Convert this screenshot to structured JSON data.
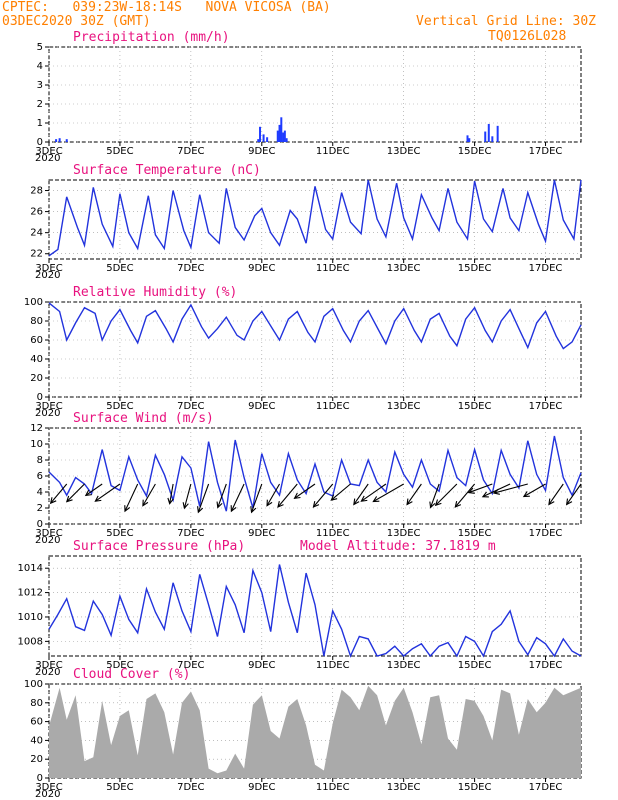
{
  "header": {
    "line1_left": "CPTEC:   039:23W-18:14S   NOVA VICOSA (BA)",
    "line2_left": "03DEC2020 30Z (GMT)",
    "line2_right": "Vertical Grid Line: 30Z",
    "line3_right": "TQ0126L028",
    "model_altitude": "Model Altitude: 37.1819 m",
    "color": "#ff7f00",
    "title_color": "#e8127f",
    "line_color": "#2233dd",
    "bar_color": "#1f3bff",
    "cloud_color": "#aaaaaa"
  },
  "x_ticks": [
    "3DEC",
    "5DEC",
    "7DEC",
    "9DEC",
    "11DEC",
    "13DEC",
    "15DEC",
    "17DEC"
  ],
  "x_tick_under": "2020",
  "chart_data": [
    {
      "type": "bar",
      "title": "Precipitation (mm/h)",
      "ylim": [
        0,
        5
      ],
      "yticks": [
        "0",
        "1",
        "2",
        "3",
        "4",
        "5"
      ],
      "x_unit": "days since 03DEC2020 30Z",
      "x": [
        0.2,
        0.3,
        0.5,
        5.95,
        6.05,
        6.15,
        5.9,
        6.45,
        6.5,
        6.55,
        6.6,
        6.65,
        6.7,
        11.8,
        11.85,
        12.3,
        12.4,
        12.5,
        12.65
      ],
      "values": [
        0.15,
        0.2,
        0.15,
        0.8,
        0.4,
        0.25,
        0.15,
        0.6,
        0.9,
        1.3,
        0.5,
        0.6,
        0.2,
        0.35,
        0.2,
        0.55,
        0.95,
        0.3,
        0.85
      ]
    },
    {
      "type": "line",
      "title": "Surface Temperature (nC)",
      "ylim": [
        21.5,
        29
      ],
      "yticks": [
        "22",
        "24",
        "26",
        "28"
      ],
      "x_unit": "days since 03DEC2020 30Z",
      "x": [
        0,
        0.25,
        0.5,
        0.8,
        1.0,
        1.25,
        1.5,
        1.8,
        2.0,
        2.25,
        2.5,
        2.8,
        3.0,
        3.25,
        3.5,
        3.8,
        4.0,
        4.25,
        4.5,
        4.8,
        5.0,
        5.25,
        5.5,
        5.8,
        6.0,
        6.25,
        6.5,
        6.8,
        7.0,
        7.25,
        7.5,
        7.8,
        8.0,
        8.25,
        8.5,
        8.8,
        9.0,
        9.25,
        9.5,
        9.8,
        10.0,
        10.25,
        10.5,
        10.8,
        11.0,
        11.25,
        11.5,
        11.8,
        12.0,
        12.25,
        12.5,
        12.8,
        13.0,
        13.25,
        13.5,
        13.8,
        14.0,
        14.25,
        14.5,
        14.8,
        15.0
      ],
      "values": [
        21.8,
        22.4,
        27.4,
        24.5,
        22.8,
        28.3,
        24.8,
        22.7,
        27.7,
        24.0,
        22.5,
        27.5,
        23.8,
        22.5,
        28.0,
        24.2,
        22.6,
        27.6,
        24.0,
        23.0,
        28.2,
        24.5,
        23.3,
        25.6,
        26.3,
        24.0,
        22.8,
        26.1,
        25.3,
        23.0,
        28.4,
        24.3,
        23.4,
        27.8,
        25.0,
        23.9,
        29.0,
        25.3,
        23.6,
        28.7,
        25.4,
        23.4,
        27.6,
        25.4,
        24.2,
        28.2,
        25.0,
        23.4,
        28.9,
        25.3,
        24.1,
        28.2,
        25.4,
        24.2,
        27.8,
        24.8,
        23.2,
        29.0,
        25.2,
        23.4,
        29.0
      ]
    },
    {
      "type": "line",
      "title": "Relative Humidity (%)",
      "ylim": [
        0,
        100
      ],
      "yticks": [
        "0",
        "20",
        "40",
        "60",
        "80",
        "100"
      ],
      "x_unit": "days since 03DEC2020 30Z",
      "x": [
        0,
        0.3,
        0.5,
        0.75,
        1.0,
        1.3,
        1.5,
        1.75,
        2.0,
        2.3,
        2.5,
        2.75,
        3.0,
        3.3,
        3.5,
        3.75,
        4.0,
        4.3,
        4.5,
        4.75,
        5.0,
        5.3,
        5.5,
        5.75,
        6.0,
        6.3,
        6.5,
        6.75,
        7.0,
        7.3,
        7.5,
        7.75,
        8.0,
        8.3,
        8.5,
        8.75,
        9.0,
        9.3,
        9.5,
        9.75,
        10.0,
        10.3,
        10.5,
        10.75,
        11.0,
        11.3,
        11.5,
        11.75,
        12.0,
        12.3,
        12.5,
        12.75,
        13.0,
        13.3,
        13.5,
        13.75,
        14.0,
        14.3,
        14.5,
        14.75,
        15.0
      ],
      "values": [
        99,
        90,
        60,
        78,
        94,
        88,
        60,
        80,
        92,
        70,
        57,
        85,
        91,
        72,
        58,
        82,
        97,
        74,
        62,
        72,
        84,
        65,
        60,
        80,
        90,
        72,
        60,
        82,
        90,
        68,
        58,
        85,
        93,
        70,
        58,
        80,
        91,
        70,
        56,
        80,
        93,
        70,
        58,
        82,
        88,
        64,
        54,
        82,
        94,
        70,
        58,
        80,
        92,
        68,
        52,
        78,
        90,
        64,
        51,
        58,
        76
      ]
    },
    {
      "type": "line",
      "title": "Surface Wind (m/s)",
      "ylim": [
        0,
        12
      ],
      "yticks": [
        "0",
        "2",
        "4",
        "6",
        "8",
        "10",
        "12"
      ],
      "x_unit": "days since 03DEC2020 30Z",
      "x": [
        0,
        0.3,
        0.5,
        0.75,
        1.0,
        1.2,
        1.5,
        1.75,
        2.0,
        2.25,
        2.5,
        2.75,
        3.0,
        3.25,
        3.5,
        3.75,
        4.0,
        4.25,
        4.5,
        4.75,
        5.0,
        5.25,
        5.5,
        5.75,
        6.0,
        6.25,
        6.5,
        6.75,
        7.0,
        7.25,
        7.5,
        7.75,
        8.0,
        8.25,
        8.5,
        8.75,
        9.0,
        9.25,
        9.5,
        9.75,
        10.0,
        10.25,
        10.5,
        10.75,
        11.0,
        11.25,
        11.5,
        11.75,
        12.0,
        12.25,
        12.5,
        12.75,
        13.0,
        13.25,
        13.5,
        13.75,
        14.0,
        14.25,
        14.5,
        14.75,
        15.0
      ],
      "values": [
        6.5,
        5.2,
        3.6,
        5.8,
        5.0,
        3.8,
        9.3,
        4.8,
        4.2,
        8.4,
        5.5,
        3.5,
        8.6,
        6.2,
        3.0,
        8.4,
        7.0,
        2.2,
        10.3,
        5.2,
        1.6,
        10.5,
        5.8,
        2.0,
        8.8,
        5.2,
        3.6,
        8.8,
        5.5,
        3.8,
        7.5,
        4.0,
        3.5,
        8.0,
        5.0,
        4.8,
        8.0,
        5.2,
        4.0,
        9.0,
        6.2,
        4.6,
        8.0,
        5.0,
        4.1,
        9.2,
        5.8,
        4.8,
        9.3,
        5.5,
        3.8,
        9.2,
        6.2,
        4.5,
        10.4,
        6.2,
        4.2,
        11.0,
        5.8,
        3.6,
        6.4
      ]
    },
    {
      "type": "line",
      "title": "Surface Pressure (hPa)",
      "ylim": [
        1006.8,
        1015
      ],
      "yticks": [
        "1008",
        "1010",
        "1012",
        "1014"
      ],
      "x_unit": "days since 03DEC2020 30Z",
      "x": [
        0,
        0.25,
        0.5,
        0.75,
        1.0,
        1.25,
        1.5,
        1.75,
        2.0,
        2.25,
        2.5,
        2.75,
        3.0,
        3.25,
        3.5,
        3.75,
        4.0,
        4.25,
        4.5,
        4.75,
        5.0,
        5.25,
        5.5,
        5.75,
        6.0,
        6.25,
        6.5,
        6.75,
        7.0,
        7.25,
        7.5,
        7.75,
        8.0,
        8.25,
        8.5,
        8.75,
        9.0,
        9.25,
        9.5,
        9.75,
        10.0,
        10.25,
        10.5,
        10.75,
        11.0,
        11.25,
        11.5,
        11.75,
        12.0,
        12.25,
        12.5,
        12.75,
        13.0,
        13.25,
        13.5,
        13.75,
        14.0,
        14.25,
        14.5,
        14.75,
        15.0
      ],
      "values": [
        1009.0,
        1010.2,
        1011.5,
        1009.2,
        1008.9,
        1011.3,
        1010.2,
        1008.5,
        1011.7,
        1009.8,
        1008.7,
        1012.3,
        1010.4,
        1009.0,
        1012.8,
        1010.5,
        1008.8,
        1013.5,
        1011.0,
        1008.4,
        1012.5,
        1011.0,
        1008.7,
        1013.8,
        1012.0,
        1008.8,
        1014.3,
        1011.2,
        1008.7,
        1013.6,
        1011.0,
        1006.6,
        1010.5,
        1009.0,
        1006.6,
        1008.4,
        1008.2,
        1006.6,
        1007.0,
        1007.6,
        1006.6,
        1007.4,
        1007.8,
        1006.6,
        1007.6,
        1007.9,
        1006.5,
        1008.4,
        1008.0,
        1006.6,
        1008.8,
        1009.4,
        1010.5,
        1008.0,
        1006.9,
        1008.3,
        1007.8,
        1006.6,
        1008.2,
        1007.2,
        1006.8
      ]
    },
    {
      "type": "area",
      "title": "Cloud Cover (%)",
      "ylim": [
        0,
        100
      ],
      "yticks": [
        "0",
        "20",
        "40",
        "60",
        "80",
        "100"
      ],
      "x_unit": "days since 03DEC2020 30Z",
      "x": [
        0,
        0.3,
        0.5,
        0.75,
        1.0,
        1.25,
        1.5,
        1.75,
        2.0,
        2.25,
        2.5,
        2.75,
        3.0,
        3.25,
        3.5,
        3.75,
        4.0,
        4.25,
        4.5,
        4.75,
        5.0,
        5.25,
        5.5,
        5.75,
        6.0,
        6.25,
        6.5,
        6.75,
        7.0,
        7.25,
        7.5,
        7.75,
        8.0,
        8.25,
        8.5,
        8.75,
        9.0,
        9.25,
        9.5,
        9.75,
        10.0,
        10.25,
        10.5,
        10.75,
        11.0,
        11.25,
        11.5,
        11.75,
        12.0,
        12.25,
        12.5,
        12.75,
        13.0,
        13.25,
        13.5,
        13.75,
        14.0,
        14.25,
        14.5,
        14.75,
        15.0
      ],
      "values": [
        55,
        96,
        62,
        88,
        18,
        22,
        82,
        35,
        66,
        72,
        24,
        84,
        90,
        70,
        25,
        80,
        92,
        72,
        10,
        5,
        8,
        26,
        10,
        78,
        88,
        50,
        42,
        76,
        84,
        56,
        14,
        8,
        58,
        94,
        86,
        72,
        98,
        88,
        56,
        82,
        96,
        70,
        36,
        86,
        88,
        42,
        30,
        84,
        82,
        66,
        40,
        94,
        90,
        46,
        84,
        70,
        80,
        96,
        88,
        92,
        96
      ]
    }
  ],
  "wind_arrows": {
    "x_unit": "days since 03DEC2020 30Z",
    "x": [
      0.5,
      1.0,
      1.5,
      2.0,
      2.5,
      3.0,
      3.5,
      4.0,
      4.5,
      5.0,
      5.5,
      6.0,
      6.5,
      7.0,
      7.5,
      8.0,
      8.5,
      9.0,
      9.5,
      10.0,
      10.5,
      11.0,
      11.5,
      12.0,
      12.5,
      13.0,
      13.5,
      14.0,
      14.5,
      15.0
    ],
    "dir_deg": [
      230,
      225,
      215,
      215,
      245,
      240,
      260,
      255,
      250,
      250,
      245,
      250,
      240,
      230,
      215,
      230,
      220,
      235,
      215,
      210,
      235,
      250,
      225,
      230,
      200,
      205,
      195,
      210,
      235,
      235
    ],
    "speed": [
      5,
      5,
      4,
      6,
      6,
      5,
      4,
      5,
      6,
      5,
      6,
      6,
      5,
      6,
      5,
      6,
      5,
      5,
      6,
      7,
      5,
      5,
      6,
      6,
      5,
      6,
      7,
      5,
      5,
      5
    ]
  }
}
